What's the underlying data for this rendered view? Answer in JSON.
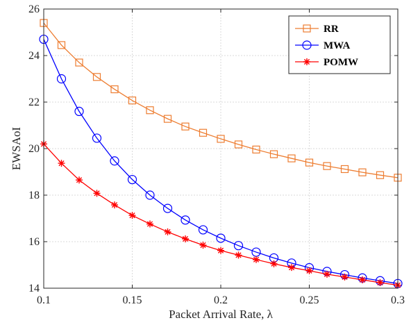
{
  "chart_data": {
    "type": "line",
    "title": "",
    "xlabel": "Packet Arrival Rate, λ",
    "ylabel": "EWSAoI",
    "xlim": [
      0.1,
      0.3
    ],
    "ylim": [
      14,
      26
    ],
    "x": [
      0.1,
      0.11,
      0.12,
      0.13,
      0.14,
      0.15,
      0.16,
      0.17,
      0.18,
      0.19,
      0.2,
      0.21,
      0.22,
      0.23,
      0.24,
      0.25,
      0.26,
      0.27,
      0.28,
      0.29,
      0.3
    ],
    "xticks": [
      0.1,
      0.15,
      0.2,
      0.25,
      0.3
    ],
    "xtick_labels": [
      "0.1",
      "0.15",
      "0.2",
      "0.25",
      "0.3"
    ],
    "yticks": [
      14,
      16,
      18,
      20,
      22,
      24,
      26
    ],
    "ytick_labels": [
      "14",
      "16",
      "18",
      "20",
      "22",
      "24",
      "26"
    ],
    "grid": true,
    "legend_position": "top-right",
    "series": [
      {
        "name": "RR",
        "color": "#ED7D31",
        "marker": "square",
        "values": [
          25.4,
          24.45,
          23.7,
          23.08,
          22.55,
          22.07,
          21.65,
          21.28,
          20.95,
          20.68,
          20.42,
          20.18,
          19.96,
          19.76,
          19.58,
          19.4,
          19.25,
          19.12,
          18.98,
          18.86,
          18.75
        ]
      },
      {
        "name": "MWA",
        "color": "#0000FF",
        "marker": "circle",
        "values": [
          24.7,
          23.0,
          21.6,
          20.45,
          19.47,
          18.67,
          18.0,
          17.43,
          16.93,
          16.51,
          16.15,
          15.83,
          15.55,
          15.3,
          15.08,
          14.88,
          14.72,
          14.58,
          14.44,
          14.32,
          14.2
        ]
      },
      {
        "name": "POMW",
        "color": "#FF0000",
        "marker": "asterisk",
        "values": [
          20.2,
          19.37,
          18.65,
          18.08,
          17.58,
          17.13,
          16.76,
          16.42,
          16.12,
          15.85,
          15.62,
          15.42,
          15.23,
          15.05,
          14.89,
          14.75,
          14.6,
          14.48,
          14.36,
          14.24,
          14.13
        ]
      }
    ]
  }
}
